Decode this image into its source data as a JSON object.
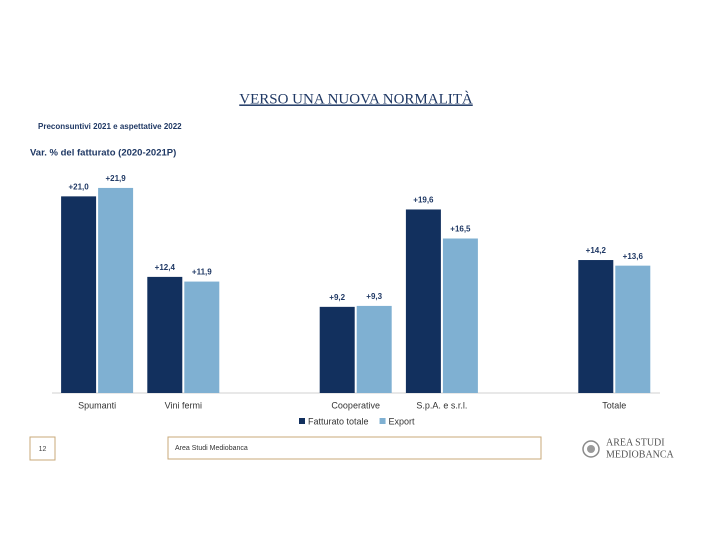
{
  "chart_data": {
    "type": "bar",
    "title": "VERSO UNA NUOVA NORMALITÀ",
    "subtitle": "Preconsuntivi 2021 e aspettative 2022",
    "y_label": "Var. % del fatturato (2020-2021P)",
    "categories": [
      "Spumanti",
      "Vini fermi",
      null,
      "Cooperative",
      "S.p.A. e s.r.l.",
      null,
      "Totale"
    ],
    "series": [
      {
        "name": "Fatturato totale",
        "color": "#12305e",
        "values": [
          21.0,
          12.4,
          null,
          9.2,
          19.6,
          null,
          14.2
        ],
        "value_labels": [
          "+21,0",
          "+12,4",
          null,
          "+9,2",
          "+19,6",
          null,
          "+14,2"
        ]
      },
      {
        "name": "Export",
        "color": "#7fb0d2",
        "values": [
          21.9,
          11.9,
          null,
          9.3,
          16.5,
          null,
          13.6
        ],
        "value_labels": [
          "+21,9",
          "+11,9",
          null,
          "+9,3",
          "+16,5",
          null,
          "+13,6"
        ]
      }
    ],
    "ylim": [
      0,
      22
    ],
    "legend": "bottom"
  },
  "footer": {
    "page_number": "12",
    "source": "Area Studi Mediobanca",
    "logo": [
      "AREA STUDI",
      "MEDIOBANCA"
    ]
  }
}
